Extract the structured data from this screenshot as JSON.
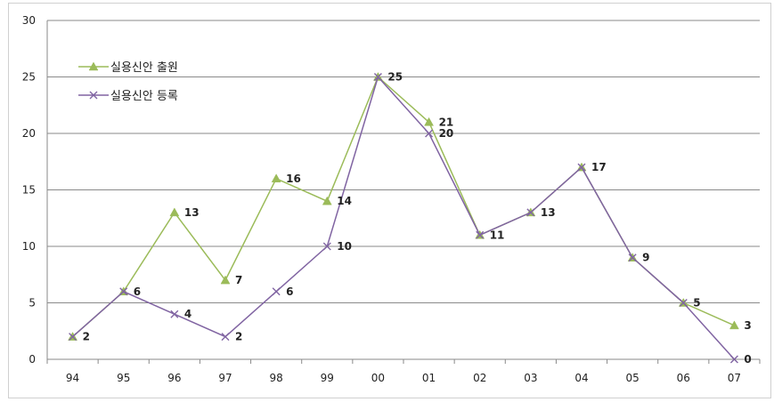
{
  "chart_data": {
    "type": "line",
    "title": "",
    "xlabel": "",
    "ylabel": "",
    "categories": [
      "94",
      "95",
      "96",
      "97",
      "98",
      "99",
      "00",
      "01",
      "02",
      "03",
      "04",
      "05",
      "06",
      "07"
    ],
    "ylim": [
      0,
      30
    ],
    "yticks": [
      0,
      5,
      10,
      15,
      20,
      25,
      30
    ],
    "grid": true,
    "legend_position": "top-left",
    "series": [
      {
        "name": "실용신안 출원",
        "marker": "triangle",
        "color": "#9bbb59",
        "values": [
          2,
          6,
          13,
          7,
          16,
          14,
          25,
          21,
          11,
          13,
          17,
          9,
          5,
          3
        ],
        "labels_shown": [
          false,
          false,
          true,
          true,
          true,
          true,
          false,
          true,
          false,
          false,
          false,
          false,
          false,
          true
        ]
      },
      {
        "name": "실용신안 등록",
        "marker": "x",
        "color": "#8064a2",
        "values": [
          2,
          6,
          4,
          2,
          6,
          10,
          25,
          20,
          11,
          13,
          17,
          9,
          5,
          0
        ],
        "labels_shown": [
          true,
          true,
          true,
          true,
          true,
          true,
          true,
          true,
          true,
          true,
          true,
          true,
          true,
          true
        ]
      }
    ]
  }
}
